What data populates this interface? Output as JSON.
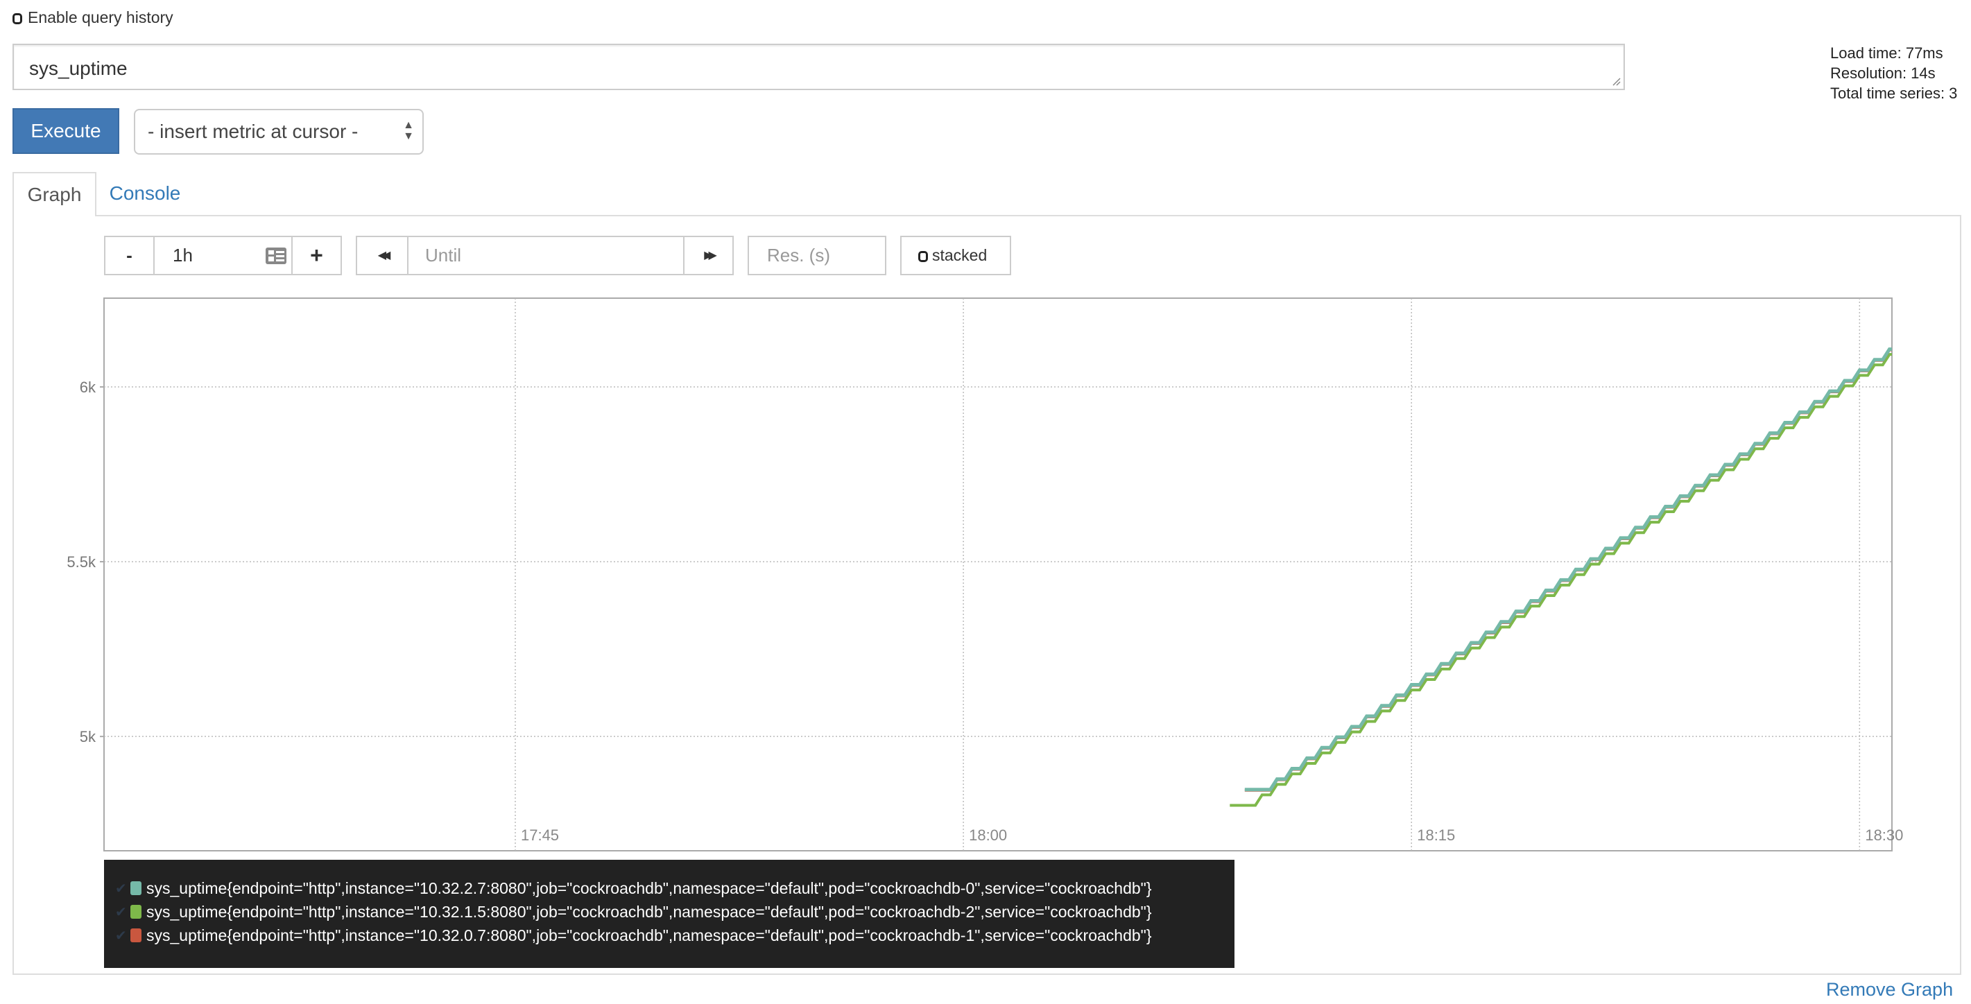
{
  "history": {
    "label": "Enable query history",
    "checked": false
  },
  "query": {
    "value": "sys_uptime"
  },
  "info": {
    "load_time": "Load time: 77ms",
    "resolution": "Resolution: 14s",
    "total_series": "Total time series: 3"
  },
  "execute_label": "Execute",
  "metric_select": {
    "value": "- insert metric at cursor -"
  },
  "tabs": [
    {
      "label": "Graph",
      "active": true
    },
    {
      "label": "Console",
      "active": false
    }
  ],
  "controls": {
    "minus": "-",
    "range": "1h",
    "plus": "+",
    "back": "◀◀",
    "until_placeholder": "Until",
    "forward": "▶▶",
    "res_placeholder": "Res. (s)",
    "stacked_label": "stacked"
  },
  "remove_graph": "Remove Graph",
  "colors": {
    "accent": "#4279b5",
    "link": "#337ab7",
    "legend_bg": "#222222"
  },
  "chart_data": {
    "type": "line",
    "xlim": [
      "17:31:14",
      "18:31:05"
    ],
    "ylim": [
      4673,
      6254
    ],
    "grid": true,
    "x_ticks": [
      "17:45",
      "18:00",
      "18:15",
      "18:30"
    ],
    "y_ticks": [
      {
        "value": 5000,
        "label": "5k"
      },
      {
        "value": 5500,
        "label": "5.5k"
      },
      {
        "value": 6000,
        "label": "6k"
      }
    ],
    "legend_placement": "bottom",
    "x": [
      "18:09:30",
      "18:10:00",
      "18:10:30",
      "18:11:00",
      "18:11:30",
      "18:12:00",
      "18:12:30",
      "18:13:00",
      "18:13:30",
      "18:14:00",
      "18:14:30",
      "18:15:00",
      "18:15:30",
      "18:16:00",
      "18:16:30",
      "18:17:00",
      "18:17:30",
      "18:18:00",
      "18:18:30",
      "18:19:00",
      "18:19:30",
      "18:20:00",
      "18:20:30",
      "18:21:00",
      "18:21:30",
      "18:22:00",
      "18:22:30",
      "18:23:00",
      "18:23:30",
      "18:24:00",
      "18:24:30",
      "18:25:00",
      "18:25:30",
      "18:26:00",
      "18:26:30",
      "18:27:00",
      "18:27:30",
      "18:28:00",
      "18:28:30",
      "18:29:00",
      "18:29:30",
      "18:30:00",
      "18:30:30",
      "18:31:00"
    ],
    "series": [
      {
        "name": "sys_uptime{endpoint=\"http\",instance=\"10.32.2.7:8080\",job=\"cockroachdb\",namespace=\"default\",pod=\"cockroachdb-0\",service=\"cockroachdb\"}",
        "color": "#75b9a8",
        "values": [
          null,
          4848,
          4878,
          4908,
          4938,
          4968,
          4998,
          5028,
          5058,
          5088,
          5118,
          5148,
          5178,
          5208,
          5238,
          5268,
          5298,
          5328,
          5358,
          5388,
          5418,
          5448,
          5478,
          5508,
          5538,
          5568,
          5598,
          5628,
          5658,
          5688,
          5718,
          5748,
          5778,
          5808,
          5838,
          5868,
          5898,
          5928,
          5958,
          5988,
          6018,
          6048,
          6078,
          6108
        ]
      },
      {
        "name": "sys_uptime{endpoint=\"http\",instance=\"10.32.1.5:8080\",job=\"cockroachdb\",namespace=\"default\",pod=\"cockroachdb-2\",service=\"cockroachdb\"}",
        "color": "#7eb84a",
        "values": [
          4803,
          4833,
          4863,
          4893,
          4923,
          4953,
          4983,
          5013,
          5043,
          5073,
          5103,
          5133,
          5163,
          5193,
          5223,
          5253,
          5283,
          5313,
          5343,
          5373,
          5403,
          5433,
          5463,
          5493,
          5523,
          5553,
          5583,
          5613,
          5643,
          5673,
          5703,
          5733,
          5763,
          5793,
          5823,
          5853,
          5883,
          5913,
          5943,
          5973,
          6003,
          6033,
          6063,
          6093
        ]
      },
      {
        "name": "sys_uptime{endpoint=\"http\",instance=\"10.32.0.7:8080\",job=\"cockroachdb\",namespace=\"default\",pod=\"cockroachdb-1\",service=\"cockroachdb\"}",
        "color": "#c9573f",
        "values": [
          null,
          4846,
          4876,
          4906,
          4936,
          4966,
          4996,
          5026,
          5056,
          5086,
          5116,
          5146,
          5176,
          5206,
          5236,
          5266,
          5296,
          5326,
          5356,
          5386,
          5416,
          5446,
          5476,
          5506,
          5536,
          5566,
          5596,
          5626,
          5656,
          5686,
          5716,
          5746,
          5776,
          5806,
          5836,
          5866,
          5896,
          5926,
          5956,
          5986,
          6016,
          6046,
          6076,
          6106
        ]
      }
    ]
  }
}
